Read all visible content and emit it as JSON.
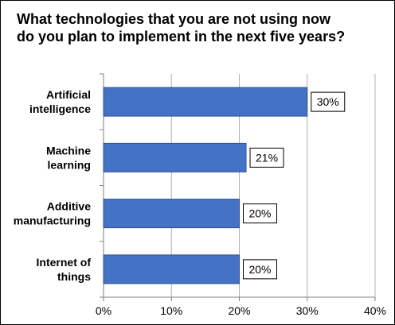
{
  "chart_data": {
    "type": "bar",
    "orientation": "horizontal",
    "title_lines": [
      "What technologies that you are not using now",
      "do you plan to implement in the next five years?"
    ],
    "categories": [
      [
        "Artificial",
        "intelligence"
      ],
      [
        "Machine",
        "learning"
      ],
      [
        "Additive",
        "manufacturing"
      ],
      [
        "Internet of",
        "things"
      ]
    ],
    "values": [
      30,
      21,
      20,
      20
    ],
    "data_labels": [
      "30%",
      "21%",
      "20%",
      "20%"
    ],
    "xlim": [
      0,
      40
    ],
    "xticks": [
      0,
      10,
      20,
      30,
      40
    ],
    "xtick_labels": [
      "0%",
      "10%",
      "20%",
      "30%",
      "40%"
    ],
    "grid": "vertical",
    "legend": "none",
    "colors": {
      "bar": "#4472C4",
      "bar_edge": "#2F528F",
      "grid": "#B0B0B0",
      "axis": "#808080"
    }
  }
}
